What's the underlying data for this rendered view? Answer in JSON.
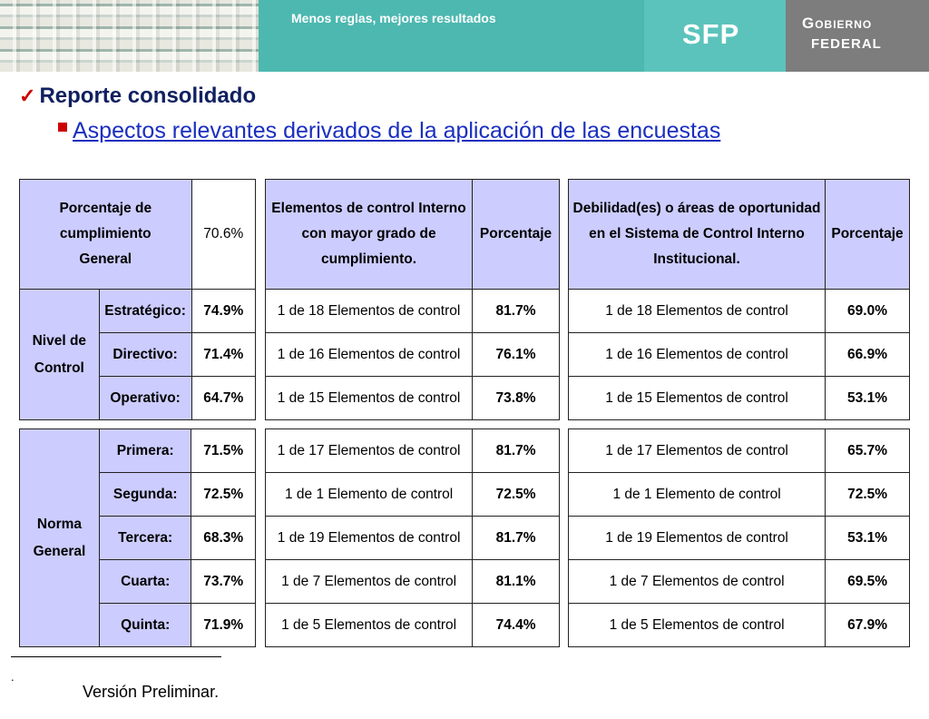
{
  "header": {
    "slogan": "Menos reglas, mejores resultados",
    "sfp": "SFP",
    "gobierno_line1": "Gobierno",
    "gobierno_line2": "Federal"
  },
  "title": "Reporte consolidado",
  "subtitle": "Aspectos relevantes derivados de la aplicación de las encuestas",
  "table1": {
    "general_label": "Porcentaje de cumplimiento General",
    "general_value": "70.6%",
    "nivel_label": "Nivel de Control",
    "nivel_rows": [
      {
        "label": "Estratégico:",
        "value": "74.9%"
      },
      {
        "label": "Directivo:",
        "value": "71.4%"
      },
      {
        "label": "Operativo:",
        "value": "64.7%"
      }
    ],
    "norma_label": "Norma General",
    "norma_rows": [
      {
        "label": "Primera:",
        "value": "71.5%"
      },
      {
        "label": "Segunda:",
        "value": "72.5%"
      },
      {
        "label": "Tercera:",
        "value": "68.3%"
      },
      {
        "label": "Cuarta:",
        "value": "73.7%"
      },
      {
        "label": "Quinta:",
        "value": "71.9%"
      }
    ]
  },
  "table2": {
    "header_elem": "Elementos de control Interno con mayor grado de cumplimiento.",
    "header_pct": "Porcentaje",
    "top_rows": [
      {
        "desc": "1 de 18 Elementos de control",
        "pct": "81.7%"
      },
      {
        "desc": "1 de 16 Elementos de control",
        "pct": "76.1%"
      },
      {
        "desc": "1 de 15 Elementos de control",
        "pct": "73.8%"
      }
    ],
    "bottom_rows": [
      {
        "desc": "1 de 17 Elementos de control",
        "pct": "81.7%"
      },
      {
        "desc": "1 de 1 Elemento de control",
        "pct": "72.5%"
      },
      {
        "desc": "1 de 19 Elementos de control",
        "pct": "81.7%"
      },
      {
        "desc": "1 de 7 Elementos de control",
        "pct": "81.1%"
      },
      {
        "desc": "1 de 5 Elementos de control",
        "pct": "74.4%"
      }
    ]
  },
  "table3": {
    "header_elem": "Debilidad(es) o áreas de oportunidad en el Sistema de Control Interno Institucional.",
    "header_pct": "Porcentaje",
    "top_rows": [
      {
        "desc": "1 de 18 Elementos de control",
        "pct": "69.0%"
      },
      {
        "desc": "1 de 16 Elementos de control",
        "pct": "66.9%"
      },
      {
        "desc": "1 de 15 Elementos de control",
        "pct": "53.1%"
      }
    ],
    "bottom_rows": [
      {
        "desc": "1 de 17 Elementos de control",
        "pct": "65.7%"
      },
      {
        "desc": "1 de 1 Elemento de control",
        "pct": "72.5%"
      },
      {
        "desc": "1 de 19 Elementos de control",
        "pct": "53.1%"
      },
      {
        "desc": "1 de 7 Elementos de control",
        "pct": "69.5%"
      },
      {
        "desc": "1 de 5 Elementos de control",
        "pct": "67.9%"
      }
    ]
  },
  "footer": {
    "dot": ".",
    "text": "Versión Preliminar."
  }
}
